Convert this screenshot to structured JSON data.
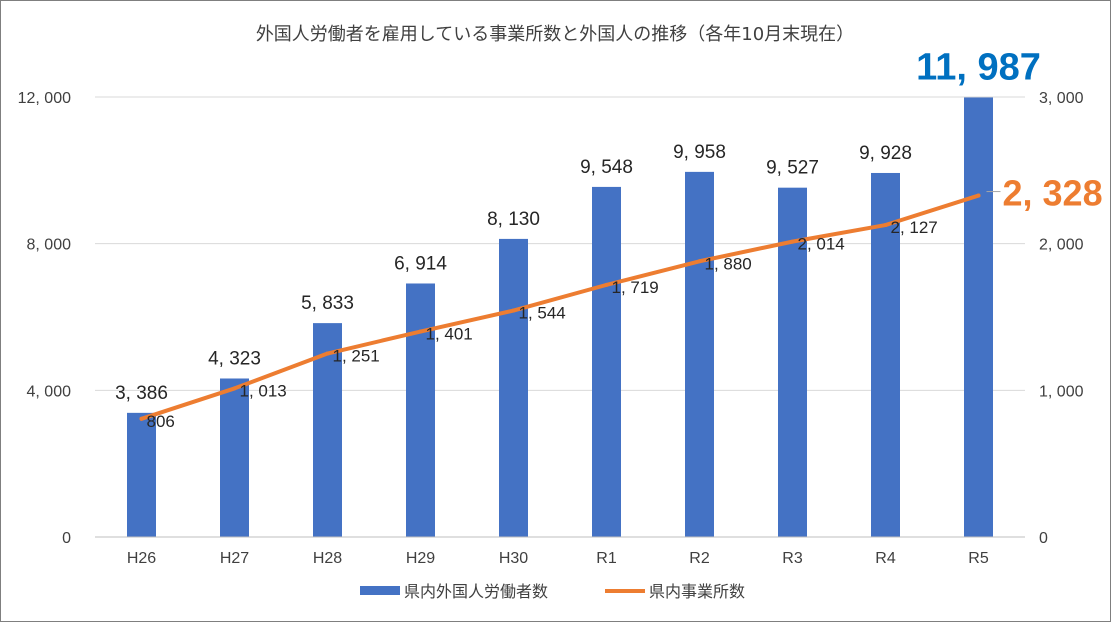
{
  "chart_data": {
    "type": "bar",
    "title": "外国人労働者を雇用している事業所数と外国人の推移（各年10月末現在）",
    "categories": [
      "H26",
      "H27",
      "H28",
      "H29",
      "H30",
      "R1",
      "R2",
      "R3",
      "R4",
      "R5"
    ],
    "series": [
      {
        "name": "県内外国人労働者数",
        "type": "bar",
        "axis": "left",
        "color": "#4472c4",
        "values": [
          3386,
          4323,
          5833,
          6914,
          8130,
          9548,
          9958,
          9527,
          9928,
          11987
        ],
        "labels": [
          "3, 386",
          "4, 323",
          "5, 833",
          "6, 914",
          "8, 130",
          "9, 548",
          "9, 958",
          "9, 527",
          "9, 928",
          "11, 987"
        ]
      },
      {
        "name": "県内事業所数",
        "type": "line",
        "axis": "right",
        "color": "#ed7d31",
        "values": [
          806,
          1013,
          1251,
          1401,
          1544,
          1719,
          1880,
          2014,
          2127,
          2328
        ],
        "labels": [
          "806",
          "1, 013",
          "1, 251",
          "1, 401",
          "1, 544",
          "1, 719",
          "1, 880",
          "2, 014",
          "2, 127",
          "2, 328"
        ]
      }
    ],
    "y_left": {
      "range": [
        0,
        12000
      ],
      "ticks": [
        0,
        4000,
        8000,
        12000
      ],
      "tick_labels": [
        "0",
        "4, 000",
        "8, 000",
        "12, 000"
      ]
    },
    "y_right": {
      "range": [
        0,
        3000
      ],
      "ticks": [
        0,
        1000,
        2000,
        3000
      ],
      "tick_labels": [
        "0",
        "1, 000",
        "2, 000",
        "3, 000"
      ]
    },
    "grid": true,
    "legend": "bottom",
    "highlight_colors": {
      "bar_last": "#0070c0",
      "line_last": "#ed7d31"
    }
  }
}
